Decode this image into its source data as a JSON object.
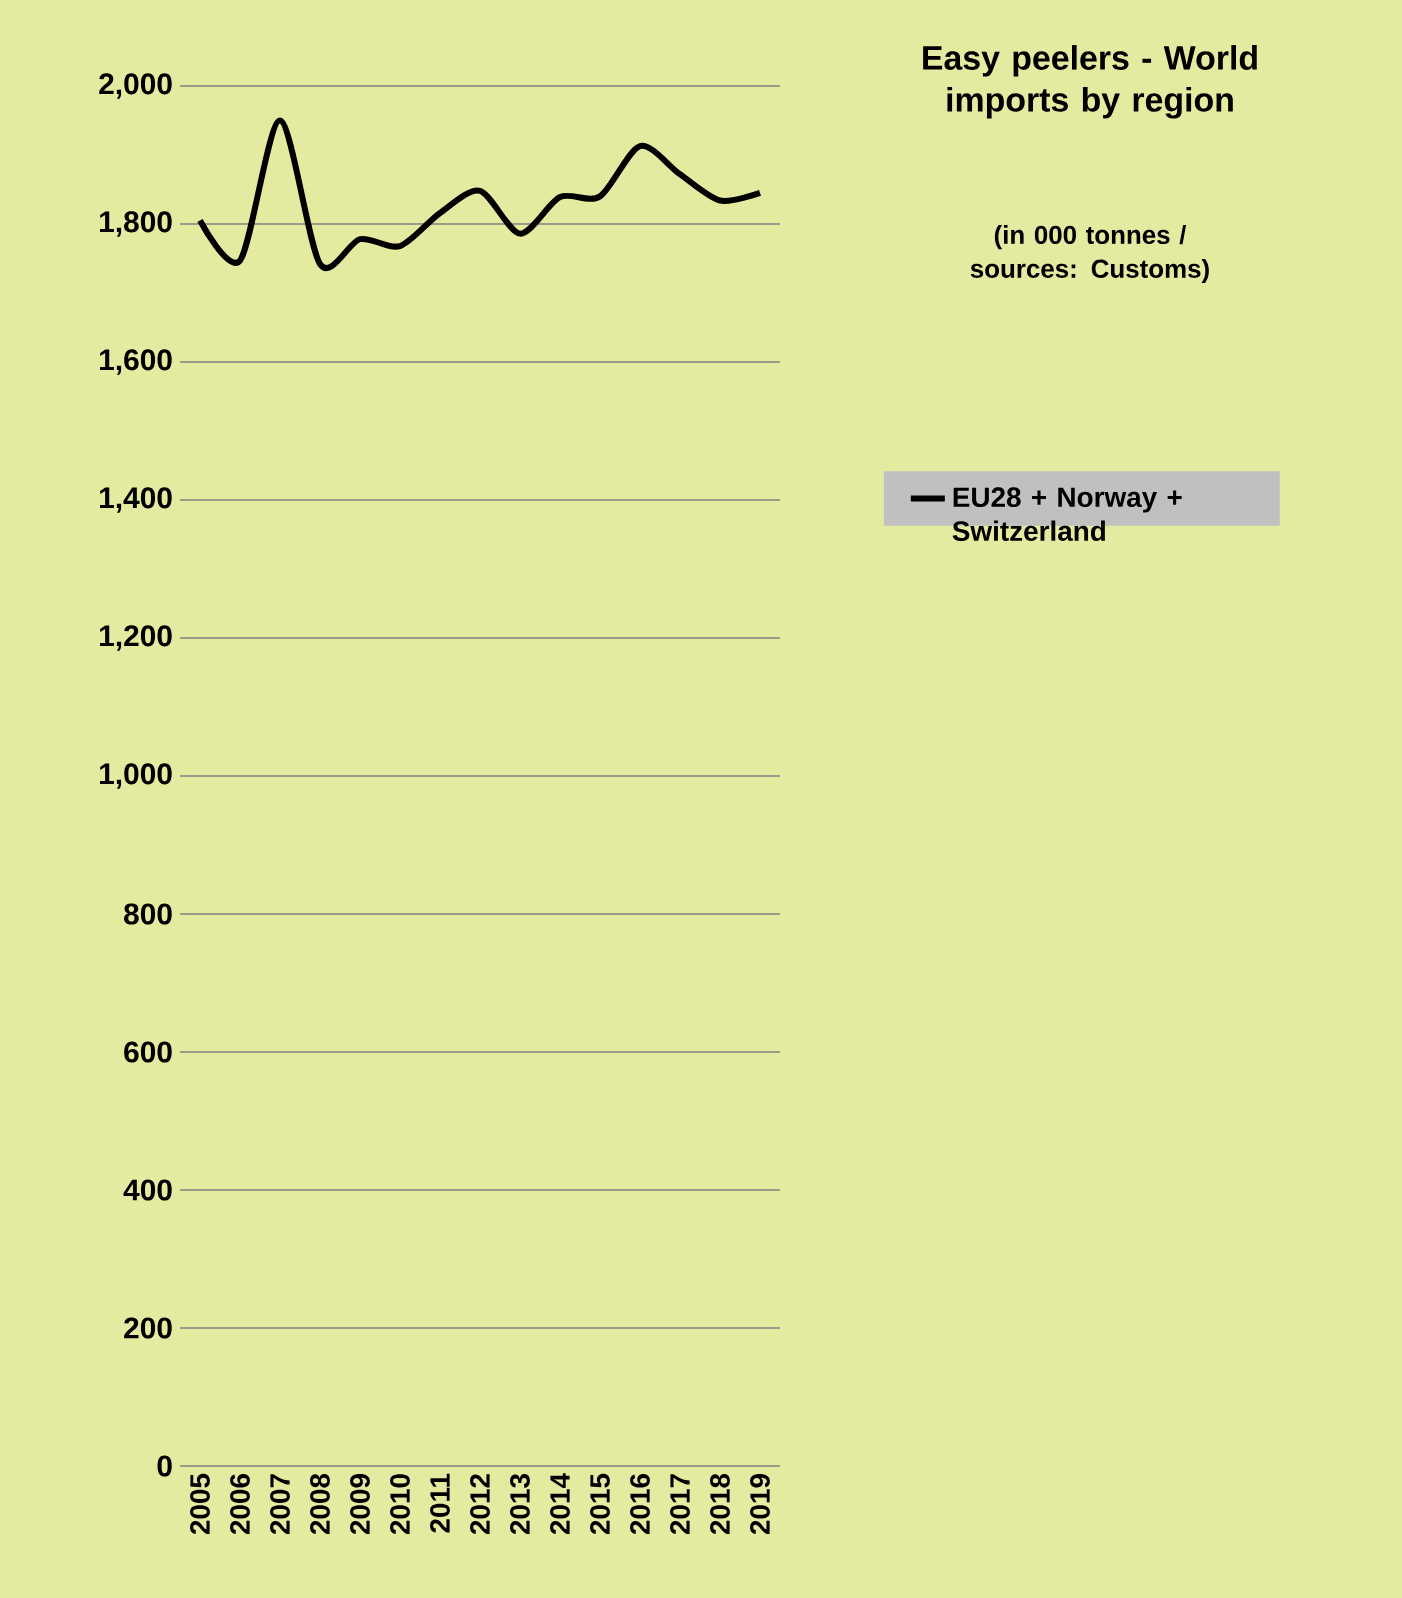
{
  "chart_data": {
    "type": "line",
    "title": "Easy peelers - World imports by region",
    "subtitle": "(in 000 tonnes / sources: Customs)",
    "categories": [
      "2005",
      "2006",
      "2007",
      "2008",
      "2009",
      "2010",
      "2011",
      "2012",
      "2013",
      "2014",
      "2015",
      "2016",
      "2017",
      "2018",
      "2019"
    ],
    "series": [
      {
        "name": "EU28 + Norway + Switzerland",
        "color": "#000000",
        "values": [
          1805,
          1747,
          1950,
          1742,
          1778,
          1768,
          1816,
          1848,
          1786,
          1839,
          1840,
          1913,
          1872,
          1834,
          1845
        ]
      }
    ],
    "ylim": [
      0,
      2000
    ],
    "yticks": [
      0,
      200,
      400,
      600,
      800,
      {
        "value": 1000,
        "label": "1,000"
      },
      {
        "value": 1200,
        "label": "1,200"
      },
      {
        "value": 1400,
        "label": "1,400"
      },
      {
        "value": 1600,
        "label": "1,600"
      },
      {
        "value": 1800,
        "label": "1,800"
      },
      {
        "value": 2000,
        "label": "2,000"
      }
    ],
    "grid": "y",
    "legend": "right"
  }
}
